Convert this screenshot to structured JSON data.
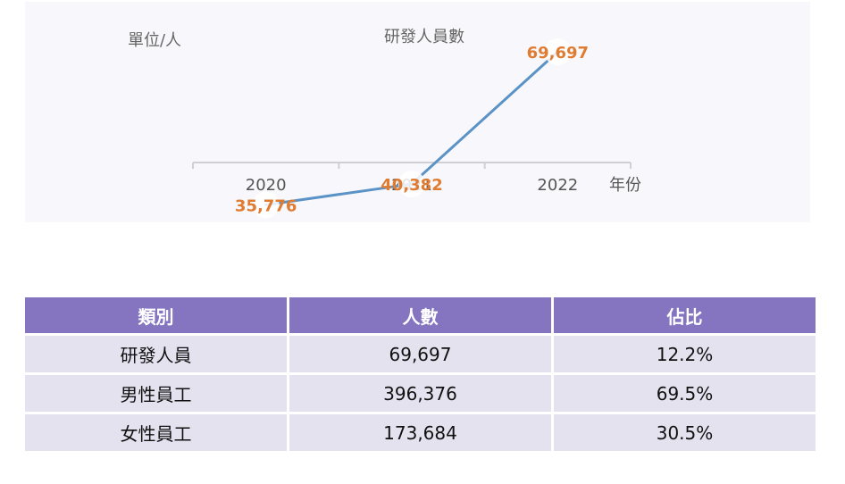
{
  "chart_data": {
    "type": "line",
    "title": "研發人員數",
    "unit_label": "單位/人",
    "xlabel": "年份",
    "ylabel": "",
    "categories": [
      "2020",
      "2021",
      "2022"
    ],
    "series": [
      {
        "values": [
          35776,
          40382,
          69697
        ],
        "labels": [
          "35,776",
          "40,382",
          "69,697"
        ]
      }
    ],
    "ylim": [
      0,
      80000
    ],
    "grid": false,
    "line_color": "#5b93c6",
    "label_color": "#e07b32"
  },
  "table": {
    "headers": [
      "類別",
      "人數",
      "佔比"
    ],
    "rows": [
      [
        "研發人員",
        "69,697",
        "12.2%"
      ],
      [
        "男性員工",
        "396,376",
        "69.5%"
      ],
      [
        "女性員工",
        "173,684",
        "30.5%"
      ]
    ],
    "header_color": "#8574c0",
    "row_color": "#e4e2ef"
  }
}
